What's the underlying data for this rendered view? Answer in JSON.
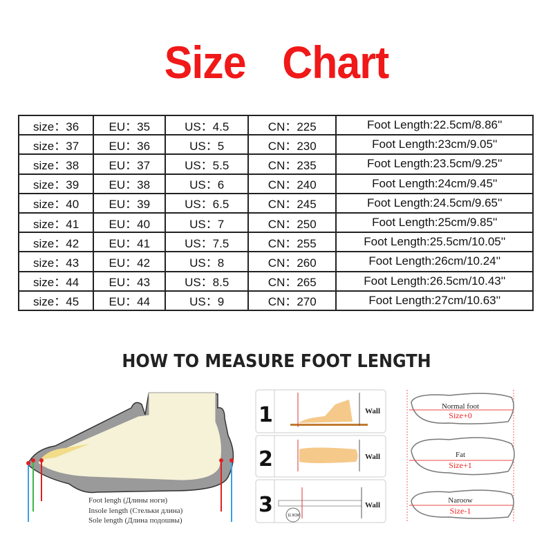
{
  "title": "Size Chart",
  "table": {
    "rows": [
      [
        "size：36",
        "EU：35",
        "US：4.5",
        "CN：225",
        "Foot Length:22.5cm/8.86''"
      ],
      [
        "size：37",
        "EU：36",
        "US：5",
        "CN：230",
        "Foot Length:23cm/9.05''"
      ],
      [
        "size：38",
        "EU：37",
        "US：5.5",
        "CN：235",
        "Foot Length:23.5cm/9.25''"
      ],
      [
        "size：39",
        "EU：38",
        "US：6",
        "CN：240",
        "Foot Length:24cm/9.45''"
      ],
      [
        "size：40",
        "EU：39",
        "US：6.5",
        "CN：245",
        "Foot Length:24.5cm/9.65''"
      ],
      [
        "size：41",
        "EU：40",
        "US：7",
        "CN：250",
        "Foot Length:25cm/9.85''"
      ],
      [
        "size：42",
        "EU：41",
        "US：7.5",
        "CN：255",
        "Foot Length:25.5cm/10.05''"
      ],
      [
        "size：43",
        "EU：42",
        "US：8",
        "CN：260",
        "Foot Length:26cm/10.24''"
      ],
      [
        "size：44",
        "EU：43",
        "US：8.5",
        "CN：265",
        "Foot Length:26.5cm/10.43''"
      ],
      [
        "size：45",
        "EU：44",
        "US：9",
        "CN：270",
        "Foot Length:27cm/10.63''"
      ]
    ]
  },
  "howto_title": "HOW TO MEASURE FOOT LENGTH",
  "shoe_diagram": {
    "foot_length": "Foot lengh (Длины ноги)",
    "insole_length": "Insole length (Стельки длина)",
    "sole_length": "Sole length (Длина подошвы)"
  },
  "steps": [
    {
      "number": "1",
      "wall": "Wall"
    },
    {
      "number": "2",
      "wall": "Wall"
    },
    {
      "number": "3",
      "wall": "Wall",
      "ruler_reading": "11.5CM"
    }
  ],
  "foot_types": [
    {
      "label": "Normal foot",
      "size": "Size+0"
    },
    {
      "label": "Fat",
      "size": "Size+1"
    },
    {
      "label": "Naroow",
      "size": "Size-1"
    }
  ],
  "colors": {
    "title": "#f01818",
    "accent_red": "#e22222"
  }
}
